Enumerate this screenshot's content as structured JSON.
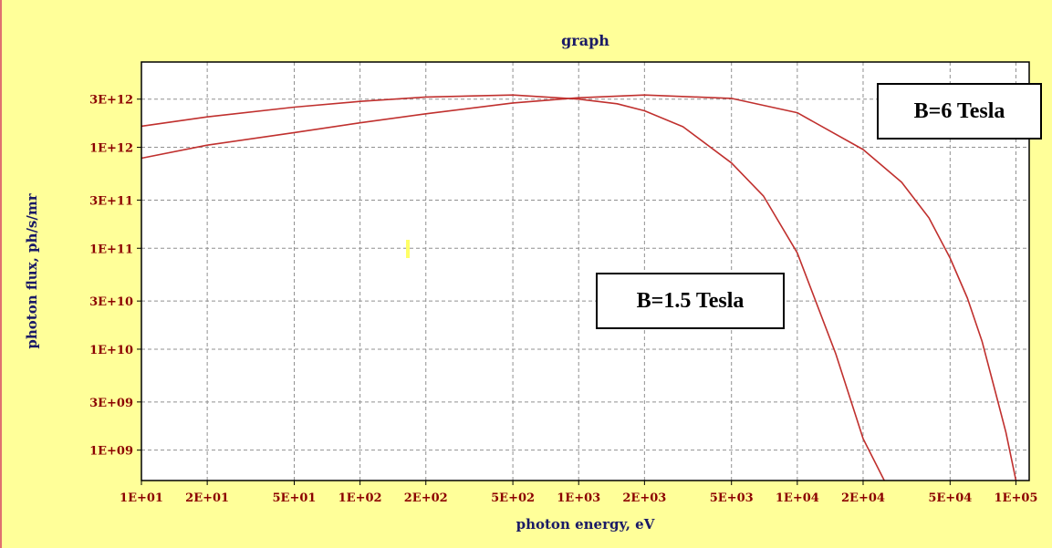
{
  "chart_data": {
    "type": "line",
    "title": "graph",
    "xlabel": "photon energy, eV",
    "ylabel": "photon flux, ph/s/mr",
    "x_scale": "log",
    "y_scale": "log",
    "xlim": [
      10,
      115000
    ],
    "ylim": [
      500000000,
      7000000000000
    ],
    "x_ticks": [
      {
        "value": 10,
        "label": "1E+01"
      },
      {
        "value": 20,
        "label": "2E+01"
      },
      {
        "value": 50,
        "label": "5E+01"
      },
      {
        "value": 100,
        "label": "1E+02"
      },
      {
        "value": 200,
        "label": "2E+02"
      },
      {
        "value": 500,
        "label": "5E+02"
      },
      {
        "value": 1000,
        "label": "1E+03"
      },
      {
        "value": 2000,
        "label": "2E+03"
      },
      {
        "value": 5000,
        "label": "5E+03"
      },
      {
        "value": 10000,
        "label": "1E+04"
      },
      {
        "value": 20000,
        "label": "2E+04"
      },
      {
        "value": 50000,
        "label": "5E+04"
      },
      {
        "value": 100000,
        "label": "1E+05"
      }
    ],
    "y_ticks": [
      {
        "value": 1000000000,
        "label": "1E+09"
      },
      {
        "value": 3000000000,
        "label": "3E+09"
      },
      {
        "value": 10000000000,
        "label": "1E+10"
      },
      {
        "value": 30000000000,
        "label": "3E+10"
      },
      {
        "value": 100000000000,
        "label": "1E+11"
      },
      {
        "value": 300000000000,
        "label": "3E+11"
      },
      {
        "value": 1000000000000,
        "label": "1E+12"
      },
      {
        "value": 3000000000000,
        "label": "3E+12"
      }
    ],
    "grid": true,
    "series": [
      {
        "x": [
          10,
          20,
          50,
          100,
          200,
          500,
          1000,
          1500,
          2000,
          3000,
          5000,
          7000,
          10000,
          15000,
          20000,
          25000
        ],
        "y": [
          1620000000000,
          2000000000000,
          2500000000000,
          2850000000000,
          3150000000000,
          3300000000000,
          3000000000000,
          2700000000000,
          2300000000000,
          1600000000000,
          700000000000,
          330000000000,
          90000000000,
          9000000000,
          1300000000,
          500000000
        ]
      },
      {
        "x": [
          10,
          20,
          50,
          100,
          200,
          500,
          1000,
          2000,
          5000,
          10000,
          20000,
          30000,
          40000,
          50000,
          60000,
          70000,
          80000,
          90000,
          100000
        ],
        "y": [
          780000000000,
          1050000000000,
          1400000000000,
          1750000000000,
          2150000000000,
          2750000000000,
          3100000000000,
          3300000000000,
          3050000000000,
          2200000000000,
          950000000000,
          450000000000,
          200000000000,
          80000000000,
          32000000000,
          12000000000,
          4000000000,
          1500000000,
          500000000
        ]
      }
    ],
    "colors": {
      "series": "#c0302e",
      "axis": "#000000",
      "grid": "#909090",
      "background": "#ffffff",
      "frame": "#ffff99",
      "tick_label": "#8b0000",
      "axis_title": "#1a1a66"
    }
  },
  "annotations": {
    "b6": "B=6 Tesla",
    "b15": "B=1.5 Tesla"
  }
}
